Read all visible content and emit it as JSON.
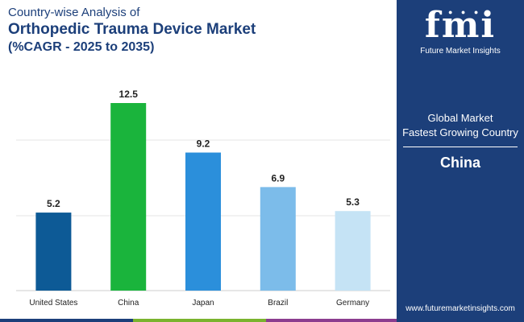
{
  "title": {
    "line1": "Country-wise Analysis of",
    "line2": "Orthopedic Trauma Device Market",
    "line3": "(%CAGR - 2025 to 2035)"
  },
  "chart_data": {
    "type": "bar",
    "title": "Country-wise Analysis of Orthopedic Trauma Device Market (%CAGR - 2025 to 2035)",
    "categories": [
      "United States",
      "China",
      "Japan",
      "Brazil",
      "Germany"
    ],
    "values": [
      5.2,
      12.5,
      9.2,
      6.9,
      5.3
    ],
    "value_labels": [
      "5.2",
      "12.5",
      "9.2",
      "6.9",
      "5.3"
    ],
    "colors": [
      "#0d5a96",
      "#1ab43c",
      "#2b8fdb",
      "#7cbcea",
      "#c5e3f5"
    ],
    "xlabel": "",
    "ylabel": "",
    "ylim": [
      0,
      12.5
    ],
    "grid": true
  },
  "panel": {
    "logo_text": "fmi",
    "logo_subtitle": "Future Market Insights",
    "label_line1": "Global Market",
    "label_line2": "Fastest Growing Country",
    "country": "China",
    "url": "www.futuremarketinsights.com"
  },
  "colors": {
    "navy": "#1c3f7a",
    "bar_us": "#0d5a96",
    "bar_china": "#1ab43c",
    "bar_japan": "#2b8fdb",
    "bar_brazil": "#7cbcea",
    "bar_germany": "#c5e3f5"
  }
}
